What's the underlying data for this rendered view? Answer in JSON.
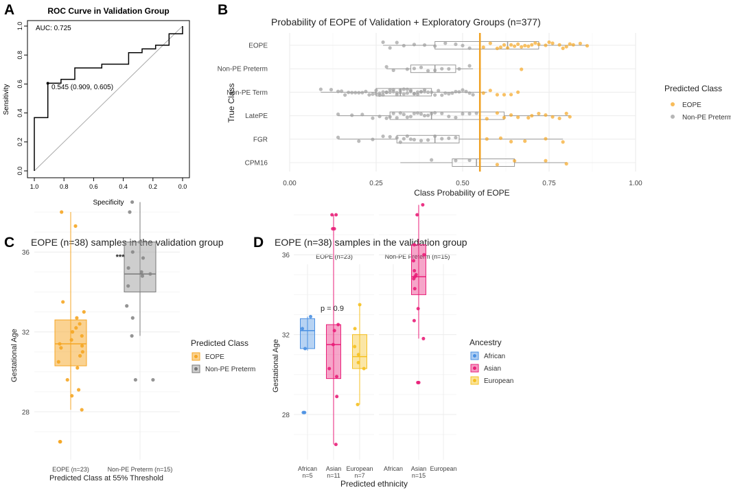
{
  "panels": {
    "A": {
      "letter": "A",
      "title": "ROC Curve in Validation Group",
      "xlabel": "Specificity",
      "ylabel": "Sensitivity",
      "auc_label": "AUC: 0.725",
      "point_label": "0.545 (0.909, 0.605)"
    },
    "B": {
      "letter": "B",
      "title": "Probability of EOPE of Validation + Exploratory Groups (n=377)",
      "xlabel": "Class Probability of EOPE",
      "ylabel": "True Class",
      "legend_title": "Predicted Class",
      "legend": [
        "EOPE",
        "Non-PE Preterm"
      ]
    },
    "C": {
      "letter": "C",
      "title": "EOPE (n=38) samples in the validation group",
      "xlabel": "Predicted Class at 55% Threshold",
      "ylabel": "Gestational Age",
      "significance": "***",
      "legend_title": "Predicted Class",
      "legend": [
        "EOPE",
        "Non-PE Preterm"
      ]
    },
    "D": {
      "letter": "D",
      "title": "EOPE (n=38) samples in the validation group",
      "xlabel": "Predicted ethnicity",
      "ylabel": "Gestational Age",
      "pvalue": "p = 0.9",
      "facets": [
        "EOPE (n=23)",
        "Non-PE Preterm (n=15)"
      ],
      "legend_title": "Ancestry",
      "legend": [
        "African",
        "Asian",
        "European"
      ]
    }
  },
  "colors": {
    "eope": "#f5a623",
    "nonpe": "#9e9e9e",
    "threshold": "#f0a020",
    "african": "#4a90e2",
    "asian": "#e91e78",
    "european": "#f5c020",
    "grid": "#ebebeb",
    "text": "#444444"
  },
  "chart_data": [
    {
      "panel": "A",
      "type": "line",
      "title": "ROC Curve in Validation Group",
      "xlabel": "Specificity",
      "ylabel": "Sensitivity",
      "xlim": [
        1.0,
        0.0
      ],
      "ylim": [
        0.0,
        1.0
      ],
      "x_ticks": [
        "1.0",
        "0.8",
        "0.6",
        "0.4",
        "0.2",
        "0.0"
      ],
      "y_ticks": [
        "0.0",
        "0.2",
        "0.4",
        "0.6",
        "0.8",
        "1.0"
      ],
      "auc": 0.725,
      "threshold_point": {
        "threshold": 0.545,
        "specificity": 0.909,
        "sensitivity": 0.605
      },
      "roc": {
        "specificity": [
          1.0,
          1.0,
          0.909,
          0.909,
          0.82,
          0.82,
          0.727,
          0.727,
          0.545,
          0.545,
          0.364,
          0.364,
          0.273,
          0.273,
          0.182,
          0.182,
          0.091,
          0.091,
          0.0,
          0.0
        ],
        "sensitivity": [
          0.0,
          0.368,
          0.368,
          0.605,
          0.605,
          0.632,
          0.632,
          0.711,
          0.711,
          0.737,
          0.737,
          0.816,
          0.816,
          0.842,
          0.842,
          0.868,
          0.868,
          0.947,
          0.947,
          1.0
        ]
      }
    },
    {
      "panel": "B",
      "type": "scatter",
      "title": "Probability of EOPE of Validation + Exploratory Groups (n=377)",
      "xlabel": "Class Probability of EOPE",
      "ylabel": "True Class",
      "xlim": [
        0.0,
        1.0
      ],
      "x_ticks": [
        "0.00",
        "0.25",
        "0.50",
        "0.75",
        "1.00"
      ],
      "threshold": 0.55,
      "categories": [
        "EOPE",
        "Non-PE Preterm",
        "Non-PE Term",
        "LatePE",
        "FGR",
        "CPM16"
      ],
      "boxes": [
        {
          "class": "EOPE",
          "min": 0.27,
          "q1": 0.42,
          "median": 0.63,
          "q3": 0.72,
          "max": 0.86
        },
        {
          "class": "Non-PE Preterm",
          "min": 0.28,
          "q1": 0.35,
          "median": 0.42,
          "q3": 0.48,
          "max": 0.53
        },
        {
          "class": "Non-PE Term",
          "min": 0.09,
          "q1": 0.25,
          "median": 0.32,
          "q3": 0.41,
          "max": 0.57
        },
        {
          "class": "LatePE",
          "min": 0.14,
          "q1": 0.29,
          "median": 0.41,
          "q3": 0.62,
          "max": 0.81
        },
        {
          "class": "FGR",
          "min": 0.14,
          "q1": 0.31,
          "median": 0.42,
          "q3": 0.49,
          "max": 0.79
        },
        {
          "class": "CPM16",
          "min": 0.32,
          "q1": 0.47,
          "median": 0.54,
          "q3": 0.65,
          "max": 0.8
        }
      ],
      "points": {
        "EOPE": [
          0.27,
          0.29,
          0.31,
          0.33,
          0.36,
          0.39,
          0.42,
          0.45,
          0.48,
          0.5,
          0.52,
          0.56,
          0.58,
          0.6,
          0.61,
          0.62,
          0.63,
          0.64,
          0.65,
          0.66,
          0.67,
          0.68,
          0.69,
          0.7,
          0.71,
          0.72,
          0.74,
          0.75,
          0.76,
          0.78,
          0.79,
          0.8,
          0.81,
          0.82,
          0.84,
          0.86
        ],
        "Non-PE Preterm": [
          0.28,
          0.3,
          0.34,
          0.36,
          0.38,
          0.4,
          0.42,
          0.44,
          0.46,
          0.49,
          0.52,
          0.67
        ],
        "Non-PE Term": [
          0.09,
          0.12,
          0.14,
          0.15,
          0.16,
          0.17,
          0.18,
          0.19,
          0.2,
          0.21,
          0.22,
          0.23,
          0.24,
          0.25,
          0.25,
          0.26,
          0.26,
          0.27,
          0.27,
          0.28,
          0.28,
          0.29,
          0.29,
          0.3,
          0.3,
          0.31,
          0.31,
          0.32,
          0.32,
          0.33,
          0.33,
          0.34,
          0.34,
          0.35,
          0.35,
          0.36,
          0.36,
          0.37,
          0.37,
          0.38,
          0.38,
          0.39,
          0.39,
          0.4,
          0.41,
          0.42,
          0.43,
          0.44,
          0.45,
          0.46,
          0.47,
          0.48,
          0.49,
          0.5,
          0.51,
          0.52,
          0.53,
          0.56,
          0.58,
          0.6,
          0.62,
          0.64,
          0.66
        ],
        "LatePE": [
          0.14,
          0.18,
          0.21,
          0.24,
          0.26,
          0.28,
          0.29,
          0.3,
          0.31,
          0.32,
          0.33,
          0.34,
          0.35,
          0.36,
          0.37,
          0.38,
          0.39,
          0.4,
          0.41,
          0.42,
          0.44,
          0.46,
          0.48,
          0.5,
          0.52,
          0.54,
          0.57,
          0.6,
          0.62,
          0.64,
          0.66,
          0.69,
          0.7,
          0.72,
          0.74,
          0.76,
          0.78,
          0.8,
          0.81
        ],
        "FGR": [
          0.14,
          0.2,
          0.24,
          0.27,
          0.29,
          0.31,
          0.32,
          0.33,
          0.34,
          0.35,
          0.36,
          0.38,
          0.4,
          0.42,
          0.44,
          0.46,
          0.48,
          0.57,
          0.61,
          0.64,
          0.68,
          0.74,
          0.79
        ],
        "CPM16": [
          0.41,
          0.48,
          0.52,
          0.6,
          0.65,
          0.74,
          0.8
        ]
      }
    },
    {
      "panel": "C",
      "type": "scatter",
      "title": "EOPE (n=38) samples in the validation group",
      "xlabel": "Predicted Class at 55% Threshold",
      "ylabel": "Gestational Age",
      "ylim": [
        26,
        39
      ],
      "y_ticks": [
        "28",
        "32",
        "36"
      ],
      "categories": [
        "EOPE (n=23)",
        "Non-PE Preterm (n=15)"
      ],
      "boxes": [
        {
          "class": "EOPE",
          "min": 28.1,
          "q1": 30.3,
          "median": 31.4,
          "q3": 32.6,
          "max": 38.0
        },
        {
          "class": "Non-PE Preterm",
          "min": 31.8,
          "q1": 34.0,
          "median": 34.9,
          "q3": 36.5,
          "max": 38.5
        }
      ],
      "points": {
        "EOPE": [
          26.5,
          26.5,
          28.1,
          28.8,
          29.1,
          29.6,
          30.2,
          30.5,
          30.8,
          31.0,
          31.2,
          31.3,
          31.4,
          31.6,
          31.8,
          32.0,
          32.2,
          32.4,
          32.7,
          33.0,
          33.5,
          37.3,
          38.0
        ],
        "Non-PE Preterm": [
          29.6,
          29.6,
          31.8,
          32.7,
          33.3,
          34.3,
          34.8,
          34.9,
          35.0,
          35.2,
          35.7,
          36.0,
          36.5,
          38.0,
          38.5
        ]
      }
    },
    {
      "panel": "D",
      "type": "scatter",
      "title": "EOPE (n=38) samples in the validation group",
      "xlabel": "Predicted ethnicity",
      "ylabel": "Gestational Age",
      "ylim": [
        26,
        39
      ],
      "y_ticks": [
        "28",
        "32",
        "36"
      ],
      "pvalue": "p = 0.9",
      "facets": [
        {
          "name": "EOPE (n=23)",
          "categories": [
            "African",
            "Asian",
            "European"
          ],
          "n_labels": [
            "n=5",
            "n=11",
            "n=7"
          ],
          "boxes": [
            {
              "ancestry": "African",
              "min": 31.2,
              "q1": 31.3,
              "median": 32.2,
              "q3": 32.8,
              "max": 32.9
            },
            {
              "ancestry": "Asian",
              "min": 26.5,
              "q1": 29.8,
              "median": 31.5,
              "q3": 32.5,
              "max": 38.0
            },
            {
              "ancestry": "European",
              "min": 28.5,
              "q1": 30.3,
              "median": 30.9,
              "q3": 32.0,
              "max": 33.5
            }
          ],
          "points": {
            "African": [
              28.1,
              28.1,
              31.3,
              32.3,
              32.9
            ],
            "Asian": [
              26.5,
              28.9,
              29.9,
              30.3,
              31.5,
              32.2,
              32.5,
              37.3,
              37.3,
              38.0,
              38.0
            ],
            "European": [
              28.5,
              30.3,
              30.6,
              31.0,
              31.4,
              32.3,
              33.5
            ]
          }
        },
        {
          "name": "Non-PE Preterm (n=15)",
          "categories": [
            "African",
            "Asian",
            "European"
          ],
          "n_labels": [
            "",
            "n=15",
            ""
          ],
          "boxes": [
            {
              "ancestry": "Asian",
              "min": 31.8,
              "q1": 34.0,
              "median": 34.9,
              "q3": 36.5,
              "max": 38.5
            }
          ],
          "points": {
            "African": [],
            "Asian": [
              29.6,
              29.6,
              31.8,
              32.7,
              33.3,
              34.3,
              34.8,
              34.9,
              35.0,
              35.2,
              35.7,
              36.0,
              36.5,
              38.0,
              38.5
            ],
            "European": []
          }
        }
      ]
    }
  ]
}
